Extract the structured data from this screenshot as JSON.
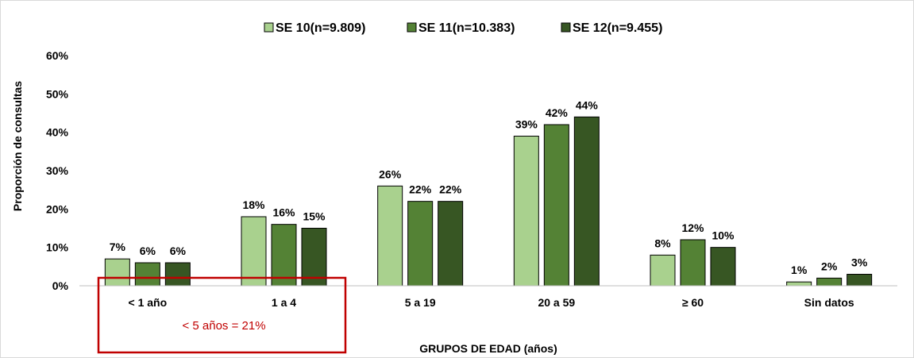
{
  "chart_data": {
    "type": "bar",
    "categories": [
      "< 1 año",
      "1 a 4",
      "5 a 19",
      "20 a 59",
      "≥ 60",
      "Sin datos"
    ],
    "series": [
      {
        "name": "SE 10(n=9.809)",
        "values": [
          7,
          18,
          26,
          39,
          8,
          1
        ],
        "labels": [
          "7%",
          "18%",
          "26%",
          "39%",
          "8%",
          "1%"
        ],
        "color": "#a9d18e"
      },
      {
        "name": "SE 11(n=10.383)",
        "values": [
          6,
          16,
          22,
          42,
          12,
          2
        ],
        "labels": [
          "6%",
          "16%",
          "22%",
          "42%",
          "12%",
          "2%"
        ],
        "color": "#548235"
      },
      {
        "name": "SE 12(n=9.455)",
        "values": [
          6,
          15,
          22,
          44,
          10,
          3
        ],
        "labels": [
          "6%",
          "15%",
          "22%",
          "44%",
          "10%",
          "3%"
        ],
        "color": "#375623"
      }
    ],
    "xlabel": "GRUPOS DE EDAD (años)",
    "ylabel": "Proporción de consultas",
    "ylim": [
      0,
      60
    ],
    "yticks": [
      "0%",
      "10%",
      "20%",
      "30%",
      "40%",
      "50%",
      "60%"
    ],
    "grid": false,
    "legend_position": "top-center",
    "annotation": {
      "text": "< 5 años = 21%",
      "color": "#c00000"
    }
  }
}
